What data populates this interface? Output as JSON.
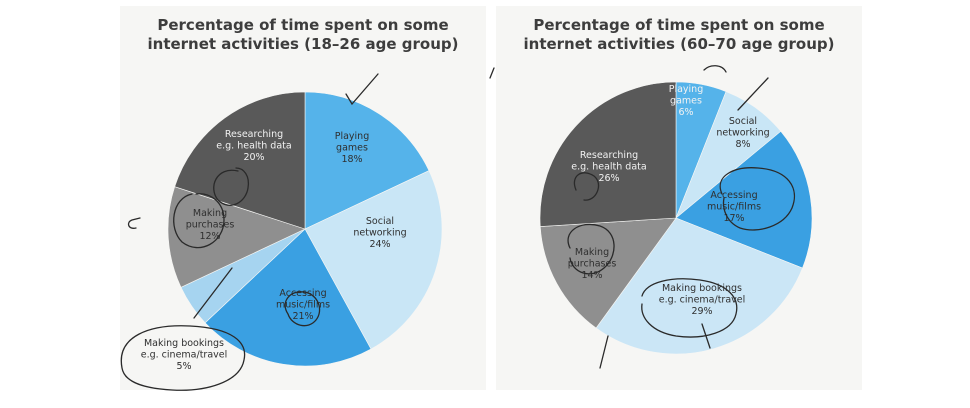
{
  "chart_data": [
    {
      "type": "pie",
      "title_lines": [
        "Percentage of time spent on some",
        "internet activities (18–26 age group)"
      ],
      "slices": [
        {
          "label_lines": [
            "Playing",
            "games"
          ],
          "value": 18,
          "value_text": "18%",
          "color": "#55b3ea"
        },
        {
          "label_lines": [
            "Social",
            "networking"
          ],
          "value": 24,
          "value_text": "24%",
          "color": "#c9e6f6"
        },
        {
          "label_lines": [
            "Accessing",
            "music/films"
          ],
          "value": 21,
          "value_text": "21%",
          "color": "#3aa0e2"
        },
        {
          "label_lines": [
            "Making bookings",
            "e.g. cinema/travel"
          ],
          "value": 5,
          "value_text": "5%",
          "color": "#a6d4f0"
        },
        {
          "label_lines": [
            "Making",
            "purchases"
          ],
          "value": 12,
          "value_text": "12%",
          "color": "#8f8f8f"
        },
        {
          "label_lines": [
            "Researching",
            "e.g. health data"
          ],
          "value": 20,
          "value_text": "20%",
          "color": "#595959"
        }
      ]
    },
    {
      "type": "pie",
      "title_lines": [
        "Percentage of time spent on some",
        "internet activities (60–70 age group)"
      ],
      "slices": [
        {
          "label_lines": [
            "Playing",
            "games"
          ],
          "value": 6,
          "value_text": "6%",
          "color": "#55b3ea"
        },
        {
          "label_lines": [
            "Social",
            "networking"
          ],
          "value": 8,
          "value_text": "8%",
          "color": "#c9e6f6"
        },
        {
          "label_lines": [
            "Accessing",
            "music/films"
          ],
          "value": 17,
          "value_text": "17%",
          "color": "#3aa0e2"
        },
        {
          "label_lines": [
            "Making bookings",
            "e.g. cinema/travel"
          ],
          "value": 29,
          "value_text": "29%",
          "color": "#cbe6f6"
        },
        {
          "label_lines": [
            "Making",
            "purchases"
          ],
          "value": 14,
          "value_text": "14%",
          "color": "#8f8f8f"
        },
        {
          "label_lines": [
            "Researching",
            "e.g. health data"
          ],
          "value": 26,
          "value_text": "26%",
          "color": "#595959"
        }
      ]
    }
  ]
}
